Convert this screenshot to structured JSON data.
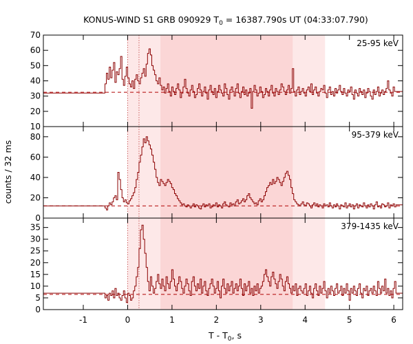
{
  "chart_data": {
    "type": "line",
    "title_parts": {
      "main": "KONUS-WIND S1 GRB 090929 T",
      "sub": "0",
      "rest": " = 16387.790s UT (04:33:07.790)"
    },
    "xlabel_parts": {
      "main": "T - T",
      "sub": "0",
      "rest": ", s"
    },
    "ylabel": "counts / 32 ms",
    "xlim": [
      -1.9,
      6.2
    ],
    "x_ticks": [
      -1,
      0,
      1,
      2,
      3,
      4,
      5,
      6
    ],
    "x_tick_labels": [
      "-1",
      "0",
      "1",
      "2",
      "3",
      "4",
      "5",
      "6"
    ],
    "trigger_lines": [
      0.0,
      0.256
    ],
    "shaded_regions": [
      {
        "from": 0.0,
        "to": 4.45,
        "color": "#fde8e8"
      },
      {
        "from": 0.74,
        "to": 3.72,
        "color": "#fbd6d6"
      }
    ],
    "line_color": "#8b0000",
    "background_line_color": "#b00000",
    "panels": [
      {
        "label": "25-95 keV",
        "ylim": [
          10,
          70
        ],
        "y_ticks": [
          10,
          20,
          30,
          40,
          50,
          60,
          70
        ],
        "background_level": 32.5,
        "pre_level": 32,
        "series": {
          "name": "25-95 keV",
          "x_start": -0.512,
          "bin": 0.032,
          "values": [
            38,
            45,
            41,
            49,
            42,
            47,
            52,
            39,
            46,
            44,
            48,
            56,
            41,
            37,
            43,
            49,
            42,
            38,
            36,
            40,
            35,
            41,
            44,
            40,
            38,
            42,
            45,
            48,
            43,
            51,
            58,
            61,
            57,
            50,
            47,
            44,
            40,
            38,
            42,
            37,
            34,
            36,
            32,
            35,
            38,
            33,
            30,
            36,
            33,
            31,
            35,
            38,
            34,
            29,
            32,
            36,
            41,
            35,
            32,
            30,
            34,
            37,
            33,
            29,
            31,
            35,
            38,
            34,
            30,
            33,
            36,
            32,
            28,
            34,
            37,
            33,
            31,
            35,
            29,
            33,
            37,
            34,
            32,
            30,
            38,
            35,
            31,
            28,
            34,
            36,
            33,
            30,
            35,
            38,
            32,
            29,
            33,
            36,
            31,
            34,
            30,
            32,
            35,
            22,
            33,
            37,
            34,
            30,
            32,
            36,
            33,
            29,
            31,
            35,
            33,
            30,
            34,
            37,
            32,
            30,
            35,
            33,
            31,
            34,
            38,
            36,
            33,
            31,
            34,
            37,
            32,
            35,
            48,
            33,
            30,
            34,
            36,
            31,
            33,
            35,
            32,
            30,
            34,
            36,
            33,
            38,
            31,
            34,
            36,
            32,
            30,
            33,
            35,
            34,
            37,
            32,
            29,
            34,
            36,
            31,
            33,
            30,
            35,
            32,
            34,
            37,
            33,
            31,
            35,
            32,
            30,
            34,
            33,
            36,
            31,
            28,
            34,
            32,
            30,
            35,
            33,
            31,
            34,
            29,
            32,
            35,
            33,
            30,
            28,
            34,
            31,
            33,
            36,
            30,
            32,
            34,
            31,
            33,
            35,
            40,
            34,
            32,
            30,
            36,
            33
          ]
        }
      },
      {
        "label": "95-379 keV",
        "ylim": [
          0,
          90
        ],
        "y_ticks": [
          0,
          20,
          40,
          60,
          80
        ],
        "background_level": 12,
        "pre_level": 12,
        "series": {
          "name": "95-379 keV",
          "x_start": -0.512,
          "bin": 0.032,
          "values": [
            10,
            8,
            12,
            15,
            13,
            16,
            20,
            22,
            18,
            45,
            38,
            28,
            20,
            16,
            18,
            15,
            14,
            17,
            19,
            22,
            25,
            30,
            38,
            45,
            55,
            62,
            70,
            78,
            74,
            80,
            76,
            72,
            68,
            62,
            55,
            48,
            40,
            35,
            32,
            38,
            36,
            34,
            32,
            35,
            38,
            36,
            34,
            30,
            28,
            24,
            22,
            19,
            17,
            15,
            13,
            14,
            12,
            11,
            13,
            12,
            10,
            12,
            14,
            11,
            13,
            12,
            10,
            9,
            12,
            14,
            11,
            13,
            12,
            14,
            10,
            11,
            13,
            12,
            15,
            11,
            13,
            12,
            10,
            14,
            16,
            13,
            12,
            11,
            15,
            13,
            14,
            12,
            16,
            18,
            14,
            15,
            17,
            19,
            16,
            18,
            22,
            24,
            20,
            18,
            16,
            14,
            15,
            13,
            17,
            19,
            16,
            18,
            22,
            26,
            30,
            32,
            35,
            33,
            38,
            34,
            36,
            40,
            38,
            35,
            32,
            36,
            40,
            44,
            46,
            42,
            38,
            30,
            24,
            18,
            16,
            14,
            13,
            12,
            14,
            16,
            13,
            12,
            15,
            14,
            12,
            10,
            13,
            15,
            12,
            14,
            11,
            13,
            12,
            10,
            14,
            12,
            13,
            11,
            15,
            12,
            10,
            13,
            11,
            14,
            12,
            9,
            13,
            12,
            11,
            15,
            10,
            12,
            14,
            11,
            13,
            9,
            12,
            14,
            10,
            13,
            12,
            11,
            15,
            12,
            10,
            13,
            11,
            14,
            12,
            9,
            13,
            16,
            11,
            12,
            10,
            14,
            13,
            11,
            12,
            15,
            10,
            13,
            12,
            14,
            11,
            13
          ]
        }
      },
      {
        "label": "379-1435 keV",
        "ylim": [
          0,
          39
        ],
        "y_ticks": [
          0,
          5,
          10,
          15,
          20,
          25,
          30,
          35
        ],
        "background_level": 6.5,
        "pre_level": 7,
        "series": {
          "name": "379-1435 keV",
          "x_start": -0.512,
          "bin": 0.032,
          "values": [
            5,
            6,
            4,
            7,
            6,
            8,
            5,
            9,
            6,
            7,
            5,
            4,
            6,
            8,
            5,
            3,
            7,
            6,
            4,
            5,
            8,
            10,
            14,
            18,
            26,
            34,
            36,
            30,
            24,
            18,
            12,
            8,
            14,
            10,
            7,
            9,
            12,
            15,
            11,
            9,
            13,
            10,
            8,
            14,
            11,
            9,
            12,
            17,
            13,
            10,
            8,
            11,
            14,
            12,
            9,
            7,
            10,
            13,
            11,
            8,
            6,
            12,
            14,
            10,
            8,
            11,
            9,
            13,
            7,
            10,
            12,
            8,
            6,
            9,
            11,
            13,
            10,
            7,
            9,
            12,
            8,
            5,
            10,
            13,
            9,
            7,
            11,
            8,
            10,
            12,
            7,
            9,
            11,
            8,
            10,
            13,
            9,
            6,
            11,
            8,
            10,
            12,
            7,
            9,
            6,
            10,
            8,
            11,
            7,
            9,
            10,
            12,
            15,
            17,
            14,
            12,
            10,
            14,
            16,
            13,
            11,
            9,
            12,
            15,
            13,
            10,
            8,
            12,
            14,
            11,
            9,
            7,
            10,
            8,
            11,
            6,
            9,
            10,
            8,
            7,
            9,
            11,
            6,
            8,
            10,
            7,
            5,
            9,
            11,
            8,
            6,
            10,
            7,
            9,
            12,
            8,
            5,
            9,
            7,
            10,
            8,
            6,
            9,
            11,
            7,
            8,
            10,
            6,
            9,
            7,
            11,
            8,
            4,
            9,
            7,
            10,
            8,
            6,
            9,
            11,
            7,
            5,
            9,
            8,
            10,
            6,
            8,
            9,
            7,
            10,
            8,
            6,
            12,
            9,
            7,
            10,
            8,
            13,
            7,
            9,
            6,
            8,
            5,
            9,
            12,
            7
          ]
        }
      }
    ]
  }
}
